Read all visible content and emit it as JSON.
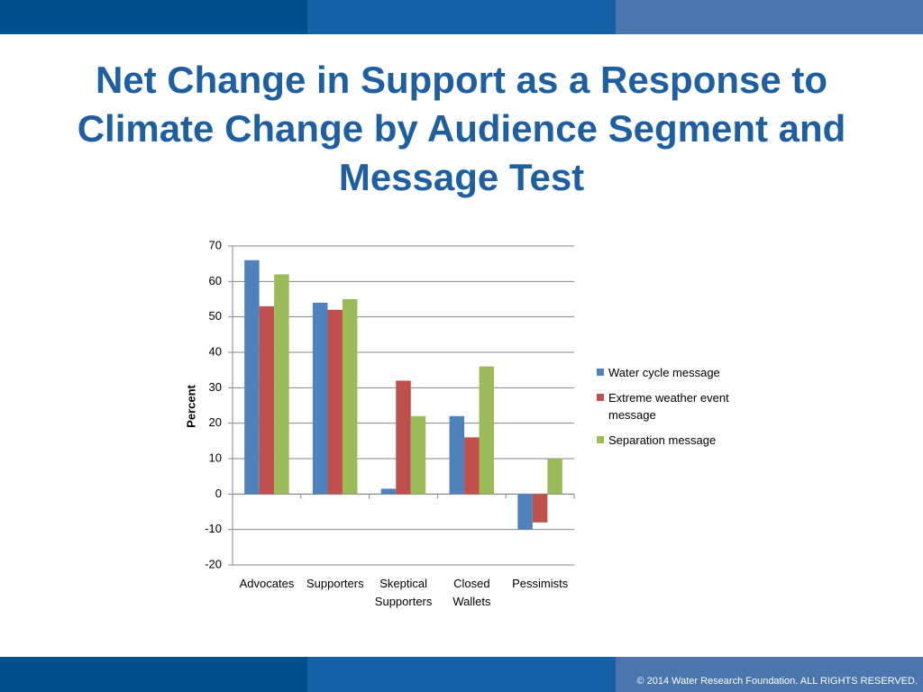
{
  "chart_data": {
    "type": "bar",
    "title": "Net Change in Support as a Response to Climate Change by Audience Segment and Message Test",
    "y_label": "Percent",
    "categories": [
      "Advocates",
      "Supporters",
      "Skeptical Supporters",
      "Closed Wallets",
      "Pessimists"
    ],
    "series": [
      {
        "name": "Water cycle message",
        "color": "#4f81bd",
        "values": [
          66,
          54,
          1.5,
          22,
          -10
        ]
      },
      {
        "name": "Extreme weather event message",
        "color": "#c0504d",
        "values": [
          53,
          52,
          32,
          16,
          -8
        ]
      },
      {
        "name": "Separation message",
        "color": "#9bbb59",
        "values": [
          62,
          55,
          22,
          36,
          10
        ]
      }
    ],
    "ylim": [
      -20,
      70
    ],
    "yticks": [
      -20,
      -10,
      0,
      10,
      20,
      30,
      40,
      50,
      60,
      70
    ],
    "grid": true,
    "legend": "right"
  },
  "footer": "© 2014 Water Research Foundation. ALL RIGHTS RESERVED."
}
